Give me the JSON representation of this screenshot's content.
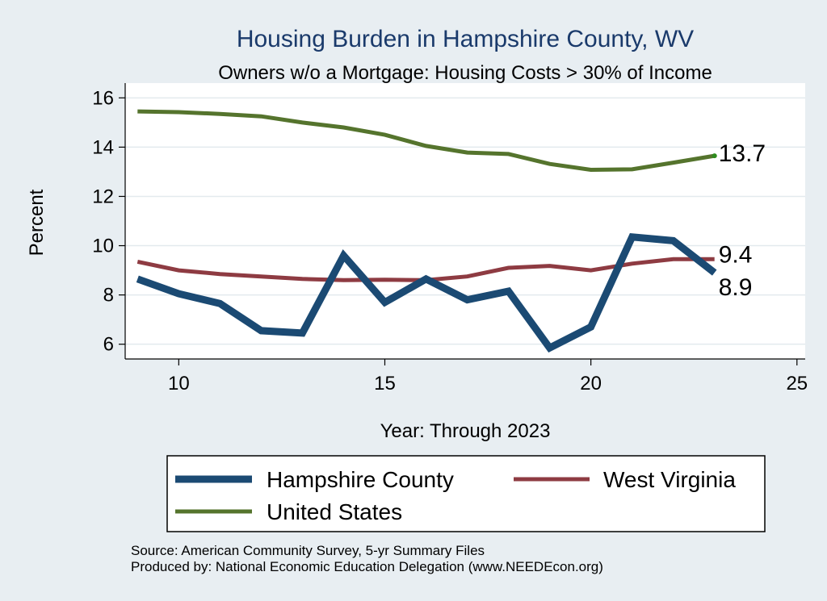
{
  "chart_data": {
    "type": "line",
    "title": "Housing Burden in Hampshire County, WV",
    "subtitle": "Owners w/o a Mortgage: Housing Costs > 30% of Income",
    "xlabel": "Year: Through 2023",
    "ylabel": "Percent",
    "xlim": [
      8.7,
      25.2
    ],
    "ylim": [
      5.4,
      16.6
    ],
    "x_ticks": [
      10,
      15,
      20,
      25
    ],
    "y_ticks": [
      6,
      8,
      10,
      12,
      14,
      16
    ],
    "grid": true,
    "legend_position": "bottom",
    "x": [
      9,
      10,
      11,
      12,
      13,
      14,
      15,
      16,
      17,
      18,
      19,
      20,
      21,
      22,
      23
    ],
    "series": [
      {
        "name": "Hampshire County",
        "color": "#1b4a73",
        "values": [
          8.65,
          8.05,
          7.65,
          6.55,
          6.45,
          9.6,
          7.7,
          8.65,
          7.8,
          8.15,
          5.85,
          6.7,
          10.35,
          10.2,
          8.9
        ],
        "end_label": "8.9"
      },
      {
        "name": "West Virginia",
        "color": "#8e3b42",
        "values": [
          9.35,
          9.0,
          8.85,
          8.75,
          8.65,
          8.6,
          8.62,
          8.6,
          8.75,
          9.1,
          9.18,
          9.0,
          9.27,
          9.45,
          9.45
        ],
        "end_label": "9.4"
      },
      {
        "name": "United States",
        "color": "#55742d",
        "values": [
          15.45,
          15.42,
          15.35,
          15.25,
          15.0,
          14.8,
          14.5,
          14.05,
          13.78,
          13.72,
          13.32,
          13.08,
          13.1,
          13.37,
          13.65
        ],
        "end_label": "13.7"
      }
    ],
    "source": "Source: American Community Survey, 5-yr Summary Files",
    "producer": "Produced by: National Economic Education Delegation (www.NEEDEcon.org)"
  }
}
